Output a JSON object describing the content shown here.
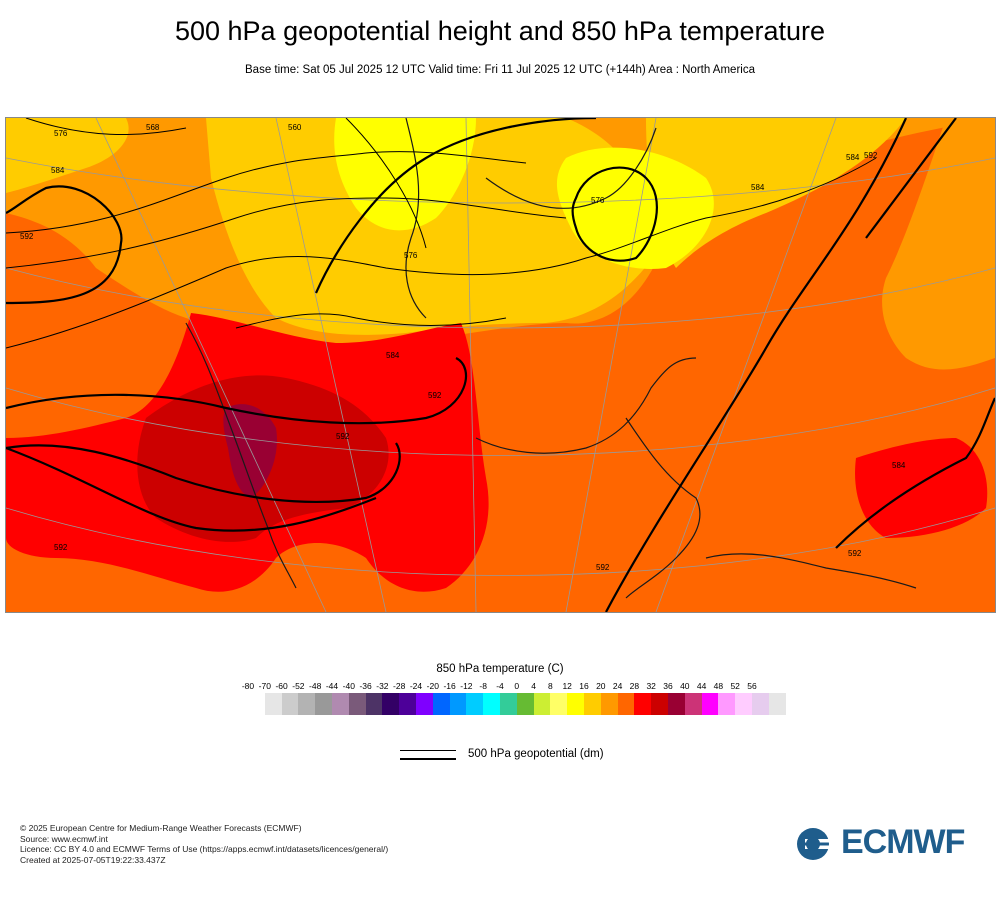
{
  "header": {
    "title": "500 hPa geopotential height and 850 hPa temperature",
    "subtitle": "Base time: Sat 05 Jul 2025 12 UTC Valid time: Fri 11 Jul 2025 12 UTC (+144h) Area : North America"
  },
  "map": {
    "area": "North America",
    "contour_labels": [
      "576",
      "568",
      "560",
      "584",
      "592",
      "592",
      "576",
      "576",
      "584",
      "584",
      "584",
      "592",
      "592",
      "592",
      "592",
      "584",
      "592"
    ],
    "colors": {
      "ocean_warm": "#ff6600",
      "land_warm": "#ff9900",
      "cool": "#ffcc00",
      "coolest": "#ffff00",
      "hot": "#ff0000",
      "very_hot": "#cc0000",
      "extreme": "#990033",
      "contour": "#000000",
      "gridline": "#999999"
    }
  },
  "legend": {
    "title": "850 hPa temperature (C)",
    "ticks": [
      "-80",
      "-70",
      "-60",
      "-52",
      "-48",
      "-44",
      "-40",
      "-36",
      "-32",
      "-28",
      "-24",
      "-20",
      "-16",
      "-12",
      "-8",
      "-4",
      "0",
      "4",
      "8",
      "12",
      "16",
      "20",
      "24",
      "28",
      "32",
      "36",
      "40",
      "44",
      "48",
      "52",
      "56"
    ],
    "colors": [
      "#e6e6e6",
      "#cccccc",
      "#b3b3b3",
      "#999999",
      "#b08ab0",
      "#7a5a7a",
      "#4d3366",
      "#330066",
      "#4d0099",
      "#7f00ff",
      "#0066ff",
      "#0099ff",
      "#00ccff",
      "#00ffff",
      "#33cc99",
      "#66bb33",
      "#ccee33",
      "#ffff66",
      "#ffff00",
      "#ffcc00",
      "#ff9900",
      "#ff6600",
      "#ff0000",
      "#cc0000",
      "#990033",
      "#cc3377",
      "#ff00ff",
      "#ff99ff",
      "#ffccff",
      "#e6ccee",
      "#e6e6e6"
    ],
    "contour_label": "500 hPa geopotential (dm)"
  },
  "footer": {
    "lines": [
      "© 2025 European Centre for Medium-Range Weather Forecasts (ECMWF)",
      "Source: www.ecmwf.int",
      "Licence: CC BY 4.0 and ECMWF Terms of Use (https://apps.ecmwf.int/datasets/licences/general/)",
      "Created at 2025-07-05T19:22:33.437Z"
    ]
  },
  "logo": {
    "text": "ECMWF",
    "color": "#1f5d8c"
  }
}
